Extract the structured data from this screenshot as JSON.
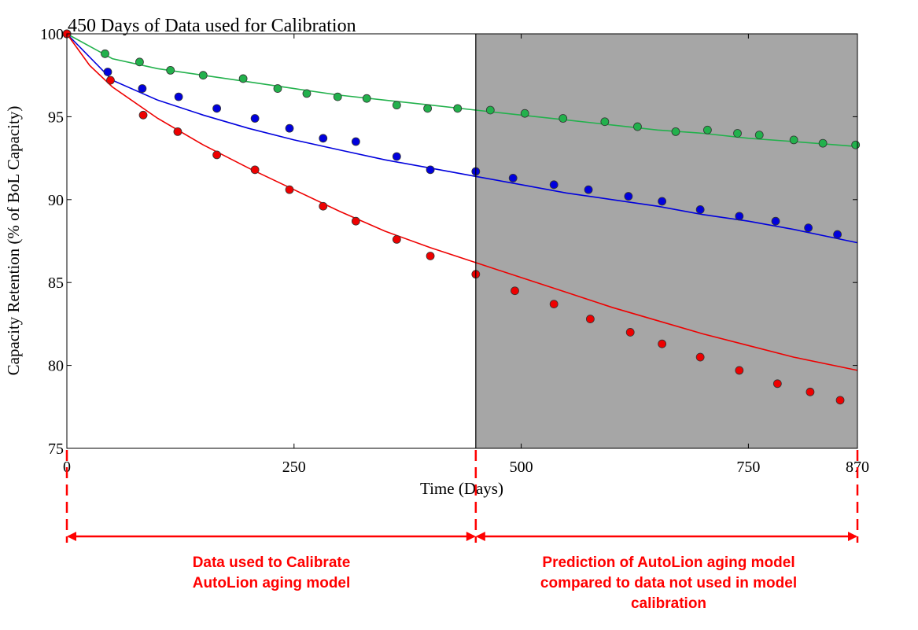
{
  "chart_data": {
    "type": "scatter",
    "title": "450 Days of Data used for Calibration",
    "xlabel": "Time (Days)",
    "ylabel": "Capacity Retention (% of BoL Capacity)",
    "xlim": [
      0,
      870
    ],
    "ylim": [
      75,
      100
    ],
    "xticks": [
      0,
      250,
      500,
      750,
      870
    ],
    "yticks": [
      75,
      80,
      85,
      90,
      95,
      100
    ],
    "calibration_cutoff_day": 450,
    "shaded_region": [
      450,
      870
    ],
    "shade_color": "#a6a6a6",
    "series": [
      {
        "color": "#22b14c",
        "points": [
          [
            0,
            100
          ],
          [
            42,
            98.8
          ],
          [
            80,
            98.3
          ],
          [
            114,
            97.8
          ],
          [
            150,
            97.5
          ],
          [
            194,
            97.3
          ],
          [
            232,
            96.7
          ],
          [
            264,
            96.4
          ],
          [
            298,
            96.2
          ],
          [
            330,
            96.1
          ],
          [
            363,
            95.7
          ],
          [
            397,
            95.5
          ],
          [
            430,
            95.5
          ],
          [
            466,
            95.4
          ],
          [
            504,
            95.2
          ],
          [
            546,
            94.9
          ],
          [
            592,
            94.7
          ],
          [
            628,
            94.4
          ],
          [
            670,
            94.1
          ],
          [
            705,
            94.2
          ],
          [
            738,
            94.0
          ],
          [
            762,
            93.9
          ],
          [
            800,
            93.6
          ],
          [
            832,
            93.4
          ],
          [
            868,
            93.3
          ]
        ],
        "fit": [
          [
            0,
            100
          ],
          [
            50,
            98.5
          ],
          [
            100,
            97.9
          ],
          [
            150,
            97.5
          ],
          [
            200,
            97.1
          ],
          [
            250,
            96.7
          ],
          [
            300,
            96.3
          ],
          [
            350,
            96.0
          ],
          [
            400,
            95.7
          ],
          [
            450,
            95.4
          ],
          [
            500,
            95.1
          ],
          [
            550,
            94.8
          ],
          [
            600,
            94.5
          ],
          [
            650,
            94.2
          ],
          [
            700,
            94.0
          ],
          [
            750,
            93.7
          ],
          [
            800,
            93.5
          ],
          [
            870,
            93.2
          ]
        ]
      },
      {
        "color": "#0000dd",
        "points": [
          [
            0,
            100
          ],
          [
            45,
            97.7
          ],
          [
            83,
            96.7
          ],
          [
            123,
            96.2
          ],
          [
            165,
            95.5
          ],
          [
            207,
            94.9
          ],
          [
            245,
            94.3
          ],
          [
            282,
            93.7
          ],
          [
            318,
            93.5
          ],
          [
            363,
            92.6
          ],
          [
            400,
            91.8
          ],
          [
            450,
            91.7
          ],
          [
            491,
            91.3
          ],
          [
            536,
            90.9
          ],
          [
            574,
            90.6
          ],
          [
            618,
            90.2
          ],
          [
            655,
            89.9
          ],
          [
            697,
            89.4
          ],
          [
            740,
            89.0
          ],
          [
            780,
            88.7
          ],
          [
            816,
            88.3
          ],
          [
            848,
            87.9
          ]
        ],
        "fit": [
          [
            0,
            100
          ],
          [
            50,
            97.2
          ],
          [
            100,
            96.0
          ],
          [
            150,
            95.1
          ],
          [
            200,
            94.3
          ],
          [
            250,
            93.6
          ],
          [
            300,
            93.0
          ],
          [
            350,
            92.4
          ],
          [
            400,
            91.9
          ],
          [
            450,
            91.4
          ],
          [
            500,
            90.9
          ],
          [
            550,
            90.4
          ],
          [
            600,
            90.0
          ],
          [
            650,
            89.6
          ],
          [
            700,
            89.1
          ],
          [
            750,
            88.7
          ],
          [
            800,
            88.2
          ],
          [
            870,
            87.4
          ]
        ]
      },
      {
        "color": "#ee0000",
        "points": [
          [
            0,
            100
          ],
          [
            48,
            97.2
          ],
          [
            84,
            95.1
          ],
          [
            122,
            94.1
          ],
          [
            165,
            92.7
          ],
          [
            207,
            91.8
          ],
          [
            245,
            90.6
          ],
          [
            282,
            89.6
          ],
          [
            318,
            88.7
          ],
          [
            363,
            87.6
          ],
          [
            400,
            86.6
          ],
          [
            450,
            85.5
          ],
          [
            493,
            84.5
          ],
          [
            536,
            83.7
          ],
          [
            576,
            82.8
          ],
          [
            620,
            82.0
          ],
          [
            655,
            81.3
          ],
          [
            697,
            80.5
          ],
          [
            740,
            79.7
          ],
          [
            782,
            78.9
          ],
          [
            818,
            78.4
          ],
          [
            851,
            77.9
          ]
        ],
        "fit": [
          [
            0,
            100
          ],
          [
            25,
            98.1
          ],
          [
            50,
            96.8
          ],
          [
            100,
            94.9
          ],
          [
            150,
            93.3
          ],
          [
            200,
            91.9
          ],
          [
            250,
            90.6
          ],
          [
            300,
            89.3
          ],
          [
            350,
            88.1
          ],
          [
            400,
            87.1
          ],
          [
            450,
            86.2
          ],
          [
            500,
            85.3
          ],
          [
            550,
            84.4
          ],
          [
            600,
            83.5
          ],
          [
            650,
            82.7
          ],
          [
            700,
            81.9
          ],
          [
            750,
            81.2
          ],
          [
            800,
            80.5
          ],
          [
            870,
            79.7
          ]
        ]
      }
    ]
  },
  "annotations": {
    "left_label": "Data used to Calibrate\nAutoLion aging model",
    "right_label": "Prediction of AutoLion aging model\ncompared to data not used in model\ncalibration"
  }
}
